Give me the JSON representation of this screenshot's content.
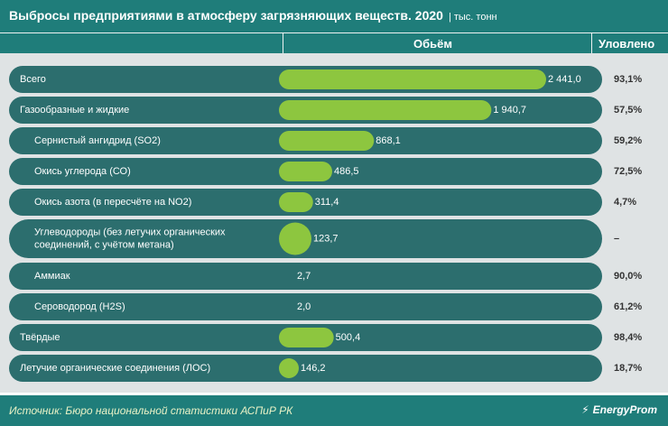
{
  "header": {
    "title": "Выбросы предприятиями в атмосферу загрязняющих веществ. 2020",
    "unit": "| тыс. тонн",
    "col_volume": "Обьём",
    "col_captured": "Уловлено"
  },
  "colors": {
    "bar": "#8dc63f",
    "row_bg": "#2c6e6e",
    "row_text": "#ffffff",
    "header_bg": "#1f7d7a",
    "page_bg": "#dfe3e4",
    "value_text": "#333333"
  },
  "chart_data": {
    "type": "bar",
    "orientation": "horizontal",
    "title": "Выбросы предприятиями в атмосферу загрязняющих веществ. 2020",
    "unit": "тыс. тонн",
    "rows": [
      {
        "label": [
          "Всего"
        ],
        "value": 2441.0,
        "value_label": "2 441,0",
        "captured": "93,1%",
        "indent": false
      },
      {
        "label": [
          "Газообразные и жидкие"
        ],
        "value": 1940.7,
        "value_label": "1 940,7",
        "captured": "57,5%",
        "indent": false
      },
      {
        "label": [
          "Сернистый ангидрид (SO2)"
        ],
        "value": 868.1,
        "value_label": "868,1",
        "captured": "59,2%",
        "indent": true
      },
      {
        "label": [
          "Окись углерода (СО)"
        ],
        "value": 486.5,
        "value_label": "486,5",
        "captured": "72,5%",
        "indent": true
      },
      {
        "label": [
          "Окись азота (в пересчёте на NO2)"
        ],
        "value": 311.4,
        "value_label": "311,4",
        "captured": "4,7%",
        "indent": true
      },
      {
        "label": [
          "Углеводороды (без летучих органических",
          "соединений, с учётом метана)"
        ],
        "value": 123.7,
        "value_label": "123,7",
        "captured": "–",
        "indent": true
      },
      {
        "label": [
          "Аммиак"
        ],
        "value": 2.7,
        "value_label": "2,7",
        "captured": "90,0%",
        "indent": true
      },
      {
        "label": [
          "Сероводород (H2S)"
        ],
        "value": 2.0,
        "value_label": "2,0",
        "captured": "61,2%",
        "indent": true
      },
      {
        "label": [
          "Твёрдые"
        ],
        "value": 500.4,
        "value_label": "500,4",
        "captured": "98,4%",
        "indent": false
      },
      {
        "label": [
          "Летучие органические соединения (ЛОС)"
        ],
        "value": 146.2,
        "value_label": "146,2",
        "captured": "18,7%",
        "indent": false
      }
    ],
    "xlim": [
      0,
      2441.0
    ]
  },
  "footer": {
    "source": "Источник: Бюро национальной  статистики АСПиР РК",
    "logo_text": "EnergyProm",
    "logo_icon": "lightning-bolt-icon"
  }
}
